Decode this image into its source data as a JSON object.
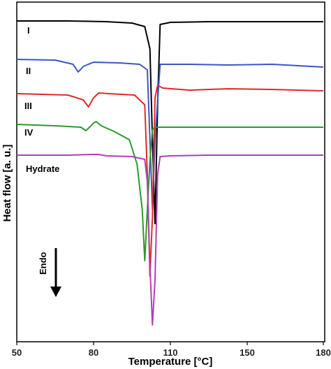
{
  "chart_data": {
    "type": "line",
    "xlabel": "Temperature [°C]",
    "ylabel": "Heat flow [a. u.]",
    "xlim": [
      50,
      180
    ],
    "x_ticks": [
      "50",
      "80",
      "110",
      "150",
      "180"
    ],
    "y_ticks": [],
    "grid": false,
    "legend": "none (curve labels placed beside each trace)",
    "annotation": {
      "text": "Endo",
      "arrow": "down"
    },
    "series": [
      {
        "name": "I",
        "color": "#000000",
        "x": [
          50,
          70,
          85,
          95,
          100,
          102,
          103,
          104,
          105,
          106,
          110,
          130,
          150,
          170,
          180
        ],
        "y": [
          30,
          30,
          31,
          33,
          38,
          70,
          200,
          320,
          150,
          35,
          32,
          31,
          31,
          31,
          31
        ]
      },
      {
        "name": "II",
        "color": "#3a55c8",
        "x": [
          50,
          65,
          72,
          74,
          76,
          80,
          90,
          98,
          101,
          102,
          103,
          104,
          106,
          120,
          140,
          160,
          170,
          180
        ],
        "y": [
          85,
          86,
          92,
          103,
          95,
          89,
          90,
          92,
          100,
          200,
          300,
          200,
          92,
          92,
          93,
          92,
          94,
          96
        ]
      },
      {
        "name": "III",
        "color": "#e02a2a",
        "x": [
          50,
          70,
          76,
          78,
          80,
          82,
          86,
          96,
          100,
          101,
          102,
          103,
          104,
          105,
          107,
          120,
          140,
          160,
          180
        ],
        "y": [
          134,
          136,
          143,
          153,
          140,
          133,
          134,
          136,
          150,
          250,
          395,
          310,
          140,
          122,
          126,
          129,
          127,
          128,
          130
        ]
      },
      {
        "name": "IV",
        "color": "#2a9a2a",
        "x": [
          50,
          65,
          75,
          77,
          79,
          80,
          81,
          83,
          88,
          94,
          97,
          99,
          100,
          101,
          102,
          103,
          104,
          120,
          140,
          160,
          180
        ],
        "y": [
          178,
          180,
          182,
          187,
          180,
          176,
          174,
          180,
          188,
          200,
          235,
          300,
          373,
          300,
          230,
          185,
          182,
          182,
          182,
          182,
          182
        ]
      },
      {
        "name": "Hydrate",
        "color": "#b040b0",
        "x": [
          50,
          70,
          79,
          82,
          85,
          95,
          100,
          101,
          102,
          103,
          104,
          105,
          106,
          110,
          130,
          150,
          170,
          180
        ],
        "y": [
          222,
          222,
          221,
          221,
          223,
          224,
          228,
          260,
          380,
          465,
          400,
          250,
          224,
          223,
          222,
          222,
          222,
          222
        ]
      }
    ]
  }
}
